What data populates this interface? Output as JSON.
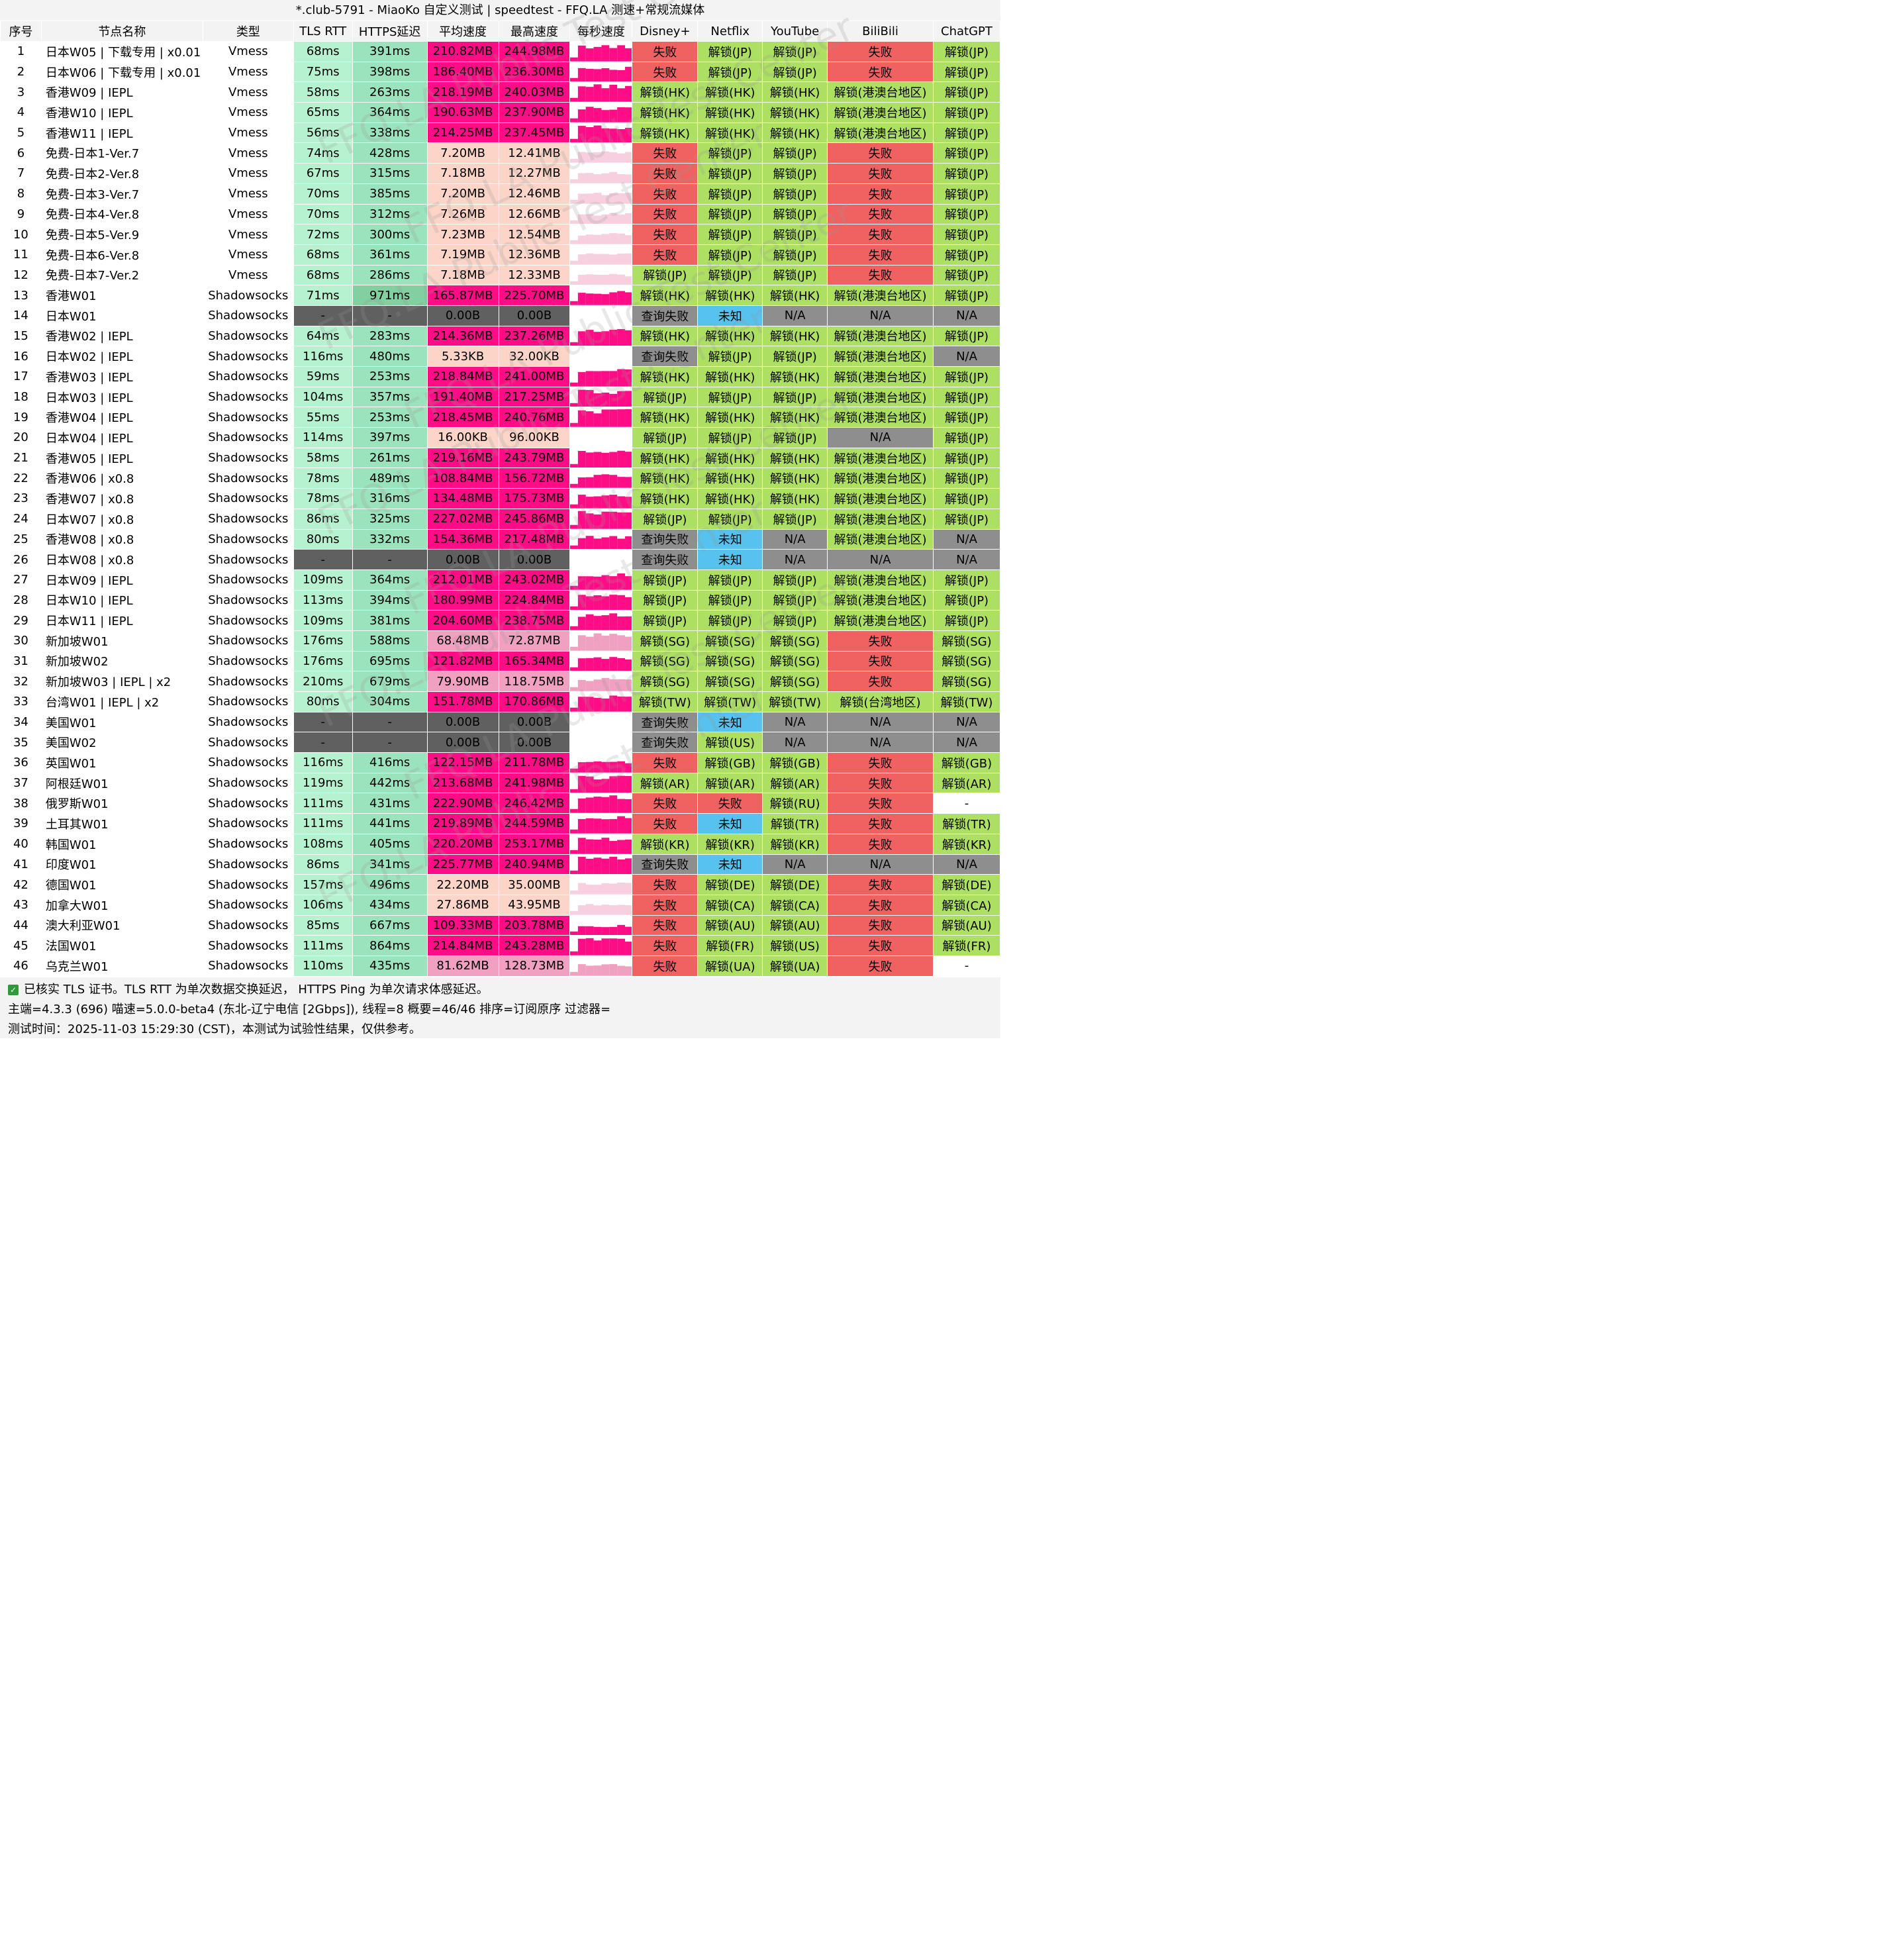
{
  "title": "*.club-5791 - MiaoKo 自定义测试 | speedtest - FFQ.LA 测速+常规流媒体",
  "watermark": "FFQ.LA Public Test Center",
  "columns": [
    "序号",
    "节点名称",
    "类型",
    "TLS RTT",
    "HTTPS延迟",
    "平均速度",
    "最高速度",
    "每秒速度",
    "Disney+",
    "Netflix",
    "YouTube",
    "BiliBili",
    "ChatGPT"
  ],
  "colors": {
    "tls_bg": "#b6f2d0",
    "https_bg": "#9be3bc",
    "https_slow_bg": "#82cf9f",
    "fast_bg": "#ff0d86",
    "medium_bg": "#f0a0c0",
    "slow_bg": "#fcd5c8",
    "fail_bg": "#606060",
    "unlock_bg": "#acdf62",
    "fail_red_bg": "#f06262",
    "query_fail_bg": "#8e8e8e",
    "unknown_bg": "#56c2ed",
    "na_bg": "#8e8e8e"
  },
  "rows": [
    [
      "1",
      "日本W05 | 下载专用 | x0.01",
      "Vmess",
      "68ms",
      "391ms",
      "210.82MB",
      "244.98MB",
      "失败",
      "解锁(JP)",
      "解锁(JP)",
      "失败",
      "解锁(JP)"
    ],
    [
      "2",
      "日本W06 | 下载专用 | x0.01",
      "Vmess",
      "75ms",
      "398ms",
      "186.40MB",
      "236.30MB",
      "失败",
      "解锁(JP)",
      "解锁(JP)",
      "失败",
      "解锁(JP)"
    ],
    [
      "3",
      "香港W09 | IEPL",
      "Vmess",
      "58ms",
      "263ms",
      "218.19MB",
      "240.03MB",
      "解锁(HK)",
      "解锁(HK)",
      "解锁(HK)",
      "解锁(港澳台地区)",
      "解锁(JP)"
    ],
    [
      "4",
      "香港W10 | IEPL",
      "Vmess",
      "65ms",
      "364ms",
      "190.63MB",
      "237.90MB",
      "解锁(HK)",
      "解锁(HK)",
      "解锁(HK)",
      "解锁(港澳台地区)",
      "解锁(JP)"
    ],
    [
      "5",
      "香港W11 | IEPL",
      "Vmess",
      "56ms",
      "338ms",
      "214.25MB",
      "237.45MB",
      "解锁(HK)",
      "解锁(HK)",
      "解锁(HK)",
      "解锁(港澳台地区)",
      "解锁(JP)"
    ],
    [
      "6",
      "免费-日本1-Ver.7",
      "Vmess",
      "74ms",
      "428ms",
      "7.20MB",
      "12.41MB",
      "失败",
      "解锁(JP)",
      "解锁(JP)",
      "失败",
      "解锁(JP)"
    ],
    [
      "7",
      "免费-日本2-Ver.8",
      "Vmess",
      "67ms",
      "315ms",
      "7.18MB",
      "12.27MB",
      "失败",
      "解锁(JP)",
      "解锁(JP)",
      "失败",
      "解锁(JP)"
    ],
    [
      "8",
      "免费-日本3-Ver.7",
      "Vmess",
      "70ms",
      "385ms",
      "7.20MB",
      "12.46MB",
      "失败",
      "解锁(JP)",
      "解锁(JP)",
      "失败",
      "解锁(JP)"
    ],
    [
      "9",
      "免费-日本4-Ver.8",
      "Vmess",
      "70ms",
      "312ms",
      "7.26MB",
      "12.66MB",
      "失败",
      "解锁(JP)",
      "解锁(JP)",
      "失败",
      "解锁(JP)"
    ],
    [
      "10",
      "免费-日本5-Ver.9",
      "Vmess",
      "72ms",
      "300ms",
      "7.23MB",
      "12.54MB",
      "失败",
      "解锁(JP)",
      "解锁(JP)",
      "失败",
      "解锁(JP)"
    ],
    [
      "11",
      "免费-日本6-Ver.8",
      "Vmess",
      "68ms",
      "361ms",
      "7.19MB",
      "12.36MB",
      "失败",
      "解锁(JP)",
      "解锁(JP)",
      "失败",
      "解锁(JP)"
    ],
    [
      "12",
      "免费-日本7-Ver.2",
      "Vmess",
      "68ms",
      "286ms",
      "7.18MB",
      "12.33MB",
      "解锁(JP)",
      "解锁(JP)",
      "解锁(JP)",
      "失败",
      "解锁(JP)"
    ],
    [
      "13",
      "香港W01",
      "Shadowsocks",
      "71ms",
      "971ms",
      "165.87MB",
      "225.70MB",
      "解锁(HK)",
      "解锁(HK)",
      "解锁(HK)",
      "解锁(港澳台地区)",
      "解锁(JP)"
    ],
    [
      "14",
      "日本W01",
      "Shadowsocks",
      "-",
      "-",
      "0.00B",
      "0.00B",
      "查询失败",
      "未知",
      "N/A",
      "N/A",
      "N/A"
    ],
    [
      "15",
      "香港W02 | IEPL",
      "Shadowsocks",
      "64ms",
      "283ms",
      "214.36MB",
      "237.26MB",
      "解锁(HK)",
      "解锁(HK)",
      "解锁(HK)",
      "解锁(港澳台地区)",
      "解锁(JP)"
    ],
    [
      "16",
      "日本W02 | IEPL",
      "Shadowsocks",
      "116ms",
      "480ms",
      "5.33KB",
      "32.00KB",
      "查询失败",
      "解锁(JP)",
      "解锁(JP)",
      "解锁(港澳台地区)",
      "N/A"
    ],
    [
      "17",
      "香港W03 | IEPL",
      "Shadowsocks",
      "59ms",
      "253ms",
      "218.84MB",
      "241.00MB",
      "解锁(HK)",
      "解锁(HK)",
      "解锁(HK)",
      "解锁(港澳台地区)",
      "解锁(JP)"
    ],
    [
      "18",
      "日本W03 | IEPL",
      "Shadowsocks",
      "104ms",
      "357ms",
      "191.40MB",
      "217.25MB",
      "解锁(JP)",
      "解锁(JP)",
      "解锁(JP)",
      "解锁(港澳台地区)",
      "解锁(JP)"
    ],
    [
      "19",
      "香港W04 | IEPL",
      "Shadowsocks",
      "55ms",
      "253ms",
      "218.45MB",
      "240.76MB",
      "解锁(HK)",
      "解锁(HK)",
      "解锁(HK)",
      "解锁(港澳台地区)",
      "解锁(JP)"
    ],
    [
      "20",
      "日本W04 | IEPL",
      "Shadowsocks",
      "114ms",
      "397ms",
      "16.00KB",
      "96.00KB",
      "解锁(JP)",
      "解锁(JP)",
      "解锁(JP)",
      "N/A",
      "解锁(JP)"
    ],
    [
      "21",
      "香港W05 | IEPL",
      "Shadowsocks",
      "58ms",
      "261ms",
      "219.16MB",
      "243.79MB",
      "解锁(HK)",
      "解锁(HK)",
      "解锁(HK)",
      "解锁(港澳台地区)",
      "解锁(JP)"
    ],
    [
      "22",
      "香港W06 | x0.8",
      "Shadowsocks",
      "78ms",
      "489ms",
      "108.84MB",
      "156.72MB",
      "解锁(HK)",
      "解锁(HK)",
      "解锁(HK)",
      "解锁(港澳台地区)",
      "解锁(JP)"
    ],
    [
      "23",
      "香港W07 | x0.8",
      "Shadowsocks",
      "78ms",
      "316ms",
      "134.48MB",
      "175.73MB",
      "解锁(HK)",
      "解锁(HK)",
      "解锁(HK)",
      "解锁(港澳台地区)",
      "解锁(JP)"
    ],
    [
      "24",
      "日本W07 | x0.8",
      "Shadowsocks",
      "86ms",
      "325ms",
      "227.02MB",
      "245.86MB",
      "解锁(JP)",
      "解锁(JP)",
      "解锁(JP)",
      "解锁(港澳台地区)",
      "解锁(JP)"
    ],
    [
      "25",
      "香港W08 | x0.8",
      "Shadowsocks",
      "80ms",
      "332ms",
      "154.36MB",
      "217.48MB",
      "查询失败",
      "未知",
      "N/A",
      "解锁(港澳台地区)",
      "N/A"
    ],
    [
      "26",
      "日本W08 | x0.8",
      "Shadowsocks",
      "-",
      "-",
      "0.00B",
      "0.00B",
      "查询失败",
      "未知",
      "N/A",
      "N/A",
      "N/A"
    ],
    [
      "27",
      "日本W09 | IEPL",
      "Shadowsocks",
      "109ms",
      "364ms",
      "212.01MB",
      "243.02MB",
      "解锁(JP)",
      "解锁(JP)",
      "解锁(JP)",
      "解锁(港澳台地区)",
      "解锁(JP)"
    ],
    [
      "28",
      "日本W10 | IEPL",
      "Shadowsocks",
      "113ms",
      "394ms",
      "180.99MB",
      "224.84MB",
      "解锁(JP)",
      "解锁(JP)",
      "解锁(JP)",
      "解锁(港澳台地区)",
      "解锁(JP)"
    ],
    [
      "29",
      "日本W11 | IEPL",
      "Shadowsocks",
      "109ms",
      "381ms",
      "204.60MB",
      "238.75MB",
      "解锁(JP)",
      "解锁(JP)",
      "解锁(JP)",
      "解锁(港澳台地区)",
      "解锁(JP)"
    ],
    [
      "30",
      "新加坡W01",
      "Shadowsocks",
      "176ms",
      "588ms",
      "68.48MB",
      "72.87MB",
      "解锁(SG)",
      "解锁(SG)",
      "解锁(SG)",
      "失败",
      "解锁(SG)"
    ],
    [
      "31",
      "新加坡W02",
      "Shadowsocks",
      "176ms",
      "695ms",
      "121.82MB",
      "165.34MB",
      "解锁(SG)",
      "解锁(SG)",
      "解锁(SG)",
      "失败",
      "解锁(SG)"
    ],
    [
      "32",
      "新加坡W03 | IEPL | x2",
      "Shadowsocks",
      "210ms",
      "679ms",
      "79.90MB",
      "118.75MB",
      "解锁(SG)",
      "解锁(SG)",
      "解锁(SG)",
      "失败",
      "解锁(SG)"
    ],
    [
      "33",
      "台湾W01 | IEPL | x2",
      "Shadowsocks",
      "80ms",
      "304ms",
      "151.78MB",
      "170.86MB",
      "解锁(TW)",
      "解锁(TW)",
      "解锁(TW)",
      "解锁(台湾地区)",
      "解锁(TW)"
    ],
    [
      "34",
      "美国W01",
      "Shadowsocks",
      "-",
      "-",
      "0.00B",
      "0.00B",
      "查询失败",
      "未知",
      "N/A",
      "N/A",
      "N/A"
    ],
    [
      "35",
      "美国W02",
      "Shadowsocks",
      "-",
      "-",
      "0.00B",
      "0.00B",
      "查询失败",
      "解锁(US)",
      "N/A",
      "N/A",
      "N/A"
    ],
    [
      "36",
      "英国W01",
      "Shadowsocks",
      "116ms",
      "416ms",
      "122.15MB",
      "211.78MB",
      "失败",
      "解锁(GB)",
      "解锁(GB)",
      "失败",
      "解锁(GB)"
    ],
    [
      "37",
      "阿根廷W01",
      "Shadowsocks",
      "119ms",
      "442ms",
      "213.68MB",
      "241.98MB",
      "解锁(AR)",
      "解锁(AR)",
      "解锁(AR)",
      "失败",
      "解锁(AR)"
    ],
    [
      "38",
      "俄罗斯W01",
      "Shadowsocks",
      "111ms",
      "431ms",
      "222.90MB",
      "246.42MB",
      "失败",
      "失败",
      "解锁(RU)",
      "失败",
      "-"
    ],
    [
      "39",
      "土耳其W01",
      "Shadowsocks",
      "111ms",
      "441ms",
      "219.89MB",
      "244.59MB",
      "失败",
      "未知",
      "解锁(TR)",
      "失败",
      "解锁(TR)"
    ],
    [
      "40",
      "韩国W01",
      "Shadowsocks",
      "108ms",
      "405ms",
      "220.20MB",
      "253.17MB",
      "解锁(KR)",
      "解锁(KR)",
      "解锁(KR)",
      "失败",
      "解锁(KR)"
    ],
    [
      "41",
      "印度W01",
      "Shadowsocks",
      "86ms",
      "341ms",
      "225.77MB",
      "240.94MB",
      "查询失败",
      "未知",
      "N/A",
      "N/A",
      "N/A"
    ],
    [
      "42",
      "德国W01",
      "Shadowsocks",
      "157ms",
      "496ms",
      "22.20MB",
      "35.00MB",
      "失败",
      "解锁(DE)",
      "解锁(DE)",
      "失败",
      "解锁(DE)"
    ],
    [
      "43",
      "加拿大W01",
      "Shadowsocks",
      "106ms",
      "434ms",
      "27.86MB",
      "43.95MB",
      "失败",
      "解锁(CA)",
      "解锁(CA)",
      "失败",
      "解锁(CA)"
    ],
    [
      "44",
      "澳大利亚W01",
      "Shadowsocks",
      "85ms",
      "667ms",
      "109.33MB",
      "203.78MB",
      "失败",
      "解锁(AU)",
      "解锁(AU)",
      "失败",
      "解锁(AU)"
    ],
    [
      "45",
      "法国W01",
      "Shadowsocks",
      "111ms",
      "864ms",
      "214.84MB",
      "243.28MB",
      "失败",
      "解锁(FR)",
      "解锁(US)",
      "失败",
      "解锁(FR)"
    ],
    [
      "46",
      "乌克兰W01",
      "Shadowsocks",
      "110ms",
      "435ms",
      "81.62MB",
      "128.73MB",
      "失败",
      "解锁(UA)",
      "解锁(UA)",
      "失败",
      "-"
    ]
  ],
  "footer": {
    "line1": "已核实 TLS 证书。TLS RTT 为单次数据交换延迟， HTTPS Ping 为单次请求体感延迟。",
    "line2": "主端=4.3.3 (696) 喵速=5.0.0-beta4 (东北-辽宁电信 [2Gbps]), 线程=8 概要=46/46 排序=订阅原序 过滤器=",
    "line3": "测试时间：2025-11-03 15:29:30 (CST)，本测试为试验性结果，仅供参考。"
  }
}
